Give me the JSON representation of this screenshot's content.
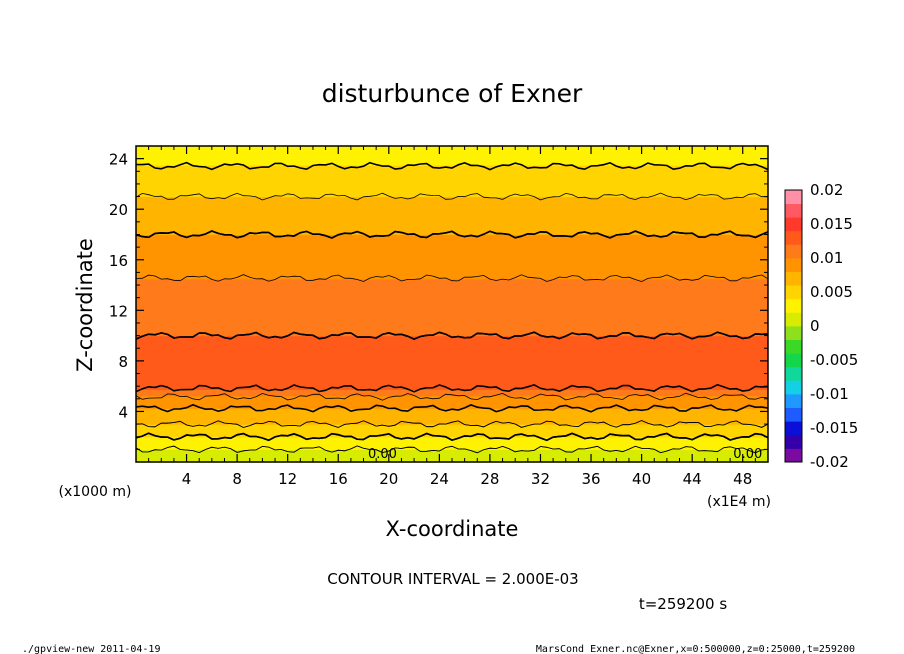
{
  "chart_data": {
    "type": "heatmap",
    "title": "disturbunce of Exner",
    "xlabel": "X-coordinate",
    "ylabel": "Z-coordinate",
    "x_unit_label": "(x1000 m)",
    "x_multiplier_label": "(x1E4 m)",
    "xlim": [
      0,
      50
    ],
    "ylim": [
      0,
      25
    ],
    "x_ticks": [
      "4",
      "8",
      "12",
      "16",
      "20",
      "24",
      "28",
      "32",
      "36",
      "40",
      "44",
      "48"
    ],
    "y_ticks": [
      "4",
      "8",
      "12",
      "16",
      "20",
      "24"
    ],
    "colorbar": {
      "min": -0.02,
      "max": 0.02,
      "tick_labels": [
        "0.02",
        "0.015",
        "0.01",
        "0.005",
        "0",
        "-0.005",
        "-0.01",
        "-0.015",
        "-0.02"
      ],
      "colors": [
        "#7a0aa0",
        "#3300aa",
        "#0a10d8",
        "#1f5cff",
        "#1f98ff",
        "#14d0e6",
        "#10d89a",
        "#14d64a",
        "#3cd828",
        "#8ee01c",
        "#d7ec00",
        "#fff200",
        "#ffd400",
        "#ffb400",
        "#ff9400",
        "#ff7a1a",
        "#ff5a1a",
        "#ff3a2a",
        "#ff5a64",
        "#ff90a8"
      ]
    },
    "profile_z": [
      0,
      1,
      2,
      3,
      4,
      5,
      6,
      7,
      8,
      9,
      10,
      12,
      14,
      16,
      18,
      20,
      22,
      24,
      25
    ],
    "profile_value": [
      0.0005,
      0.002,
      0.004,
      0.006,
      0.0075,
      0.0095,
      0.0125,
      0.0132,
      0.0133,
      0.0125,
      0.012,
      0.0113,
      0.0103,
      0.0092,
      0.008,
      0.0068,
      0.0052,
      0.0035,
      0.0025
    ],
    "contour_labels": [
      "0.00",
      "0.00"
    ],
    "contour_interval": "CONTOUR INTERVAL = 2.000E-03",
    "time_label": "t=259200 s"
  },
  "footer": {
    "left": "./gpview-new  2011-04-19",
    "right": "MarsCond_Exner.nc@Exner,x=0:500000,z=0:25000,t=259200"
  }
}
